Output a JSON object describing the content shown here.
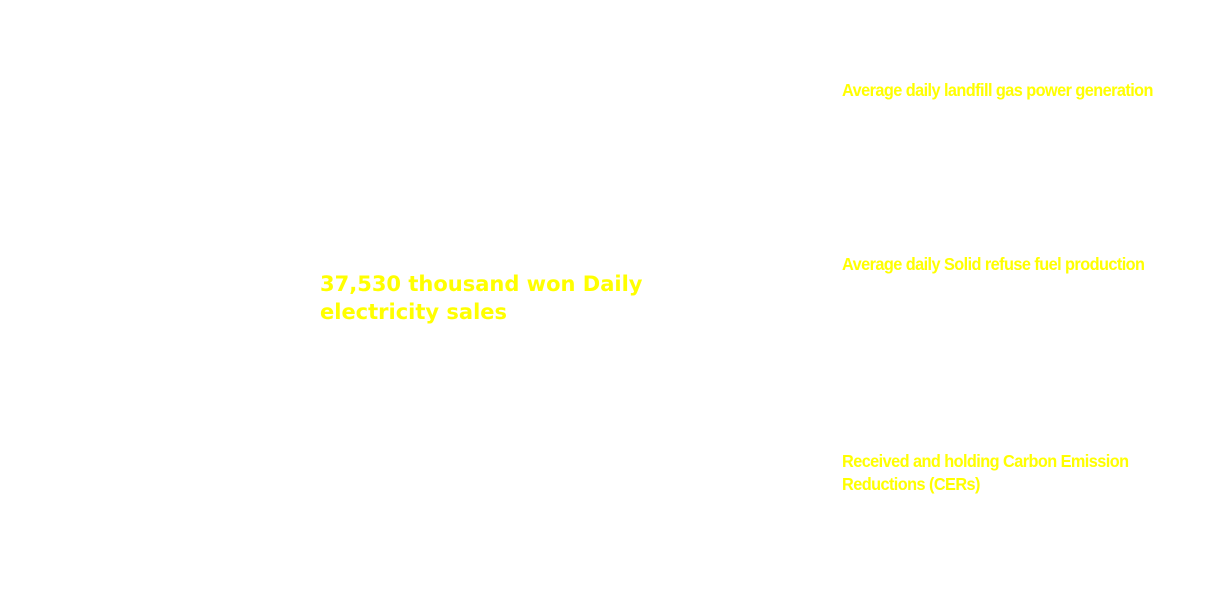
{
  "colors": {
    "background": "#ffffff",
    "text": "#ffff00"
  },
  "center": {
    "stat_text": "37,530 thousand won Daily electricity sales"
  },
  "side_items": [
    {
      "label": "Average daily landfill gas power generation"
    },
    {
      "label": "Average daily  Solid refuse fuel production"
    },
    {
      "label": "Received and holding Carbon Emission Reductions (CERs)"
    }
  ]
}
